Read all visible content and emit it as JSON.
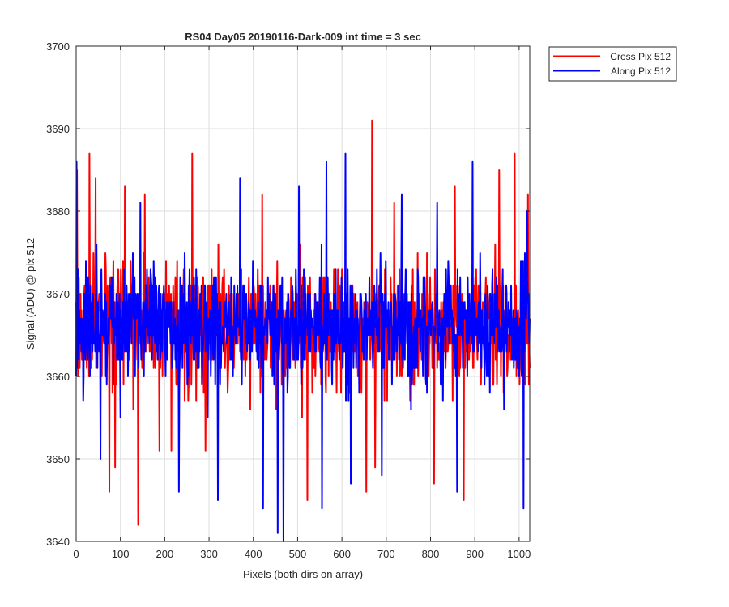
{
  "chart_data": {
    "type": "line",
    "title": "RS04 Day05 20190116-Dark-009 int time = 3 sec",
    "xlabel": "Pixels (both dirs on array)",
    "ylabel": "Signal (ADU) @ pix 512",
    "xlim": [
      0,
      1024
    ],
    "ylim": [
      3640,
      3700
    ],
    "xticks": [
      0,
      100,
      200,
      300,
      400,
      500,
      600,
      700,
      800,
      900,
      1000
    ],
    "yticks": [
      3640,
      3650,
      3660,
      3670,
      3680,
      3690,
      3700
    ],
    "grid": true,
    "legend_position": "outside-top-right",
    "signal_center": 3666,
    "signal_spread": 3.5,
    "series": [
      {
        "name": "Cross Pix 512",
        "color": "#ff0000",
        "seed": 17,
        "spikes": [
          {
            "x": 2,
            "y": 3685
          },
          {
            "x": 30,
            "y": 3687
          },
          {
            "x": 44,
            "y": 3684
          },
          {
            "x": 75,
            "y": 3646
          },
          {
            "x": 88,
            "y": 3649
          },
          {
            "x": 110,
            "y": 3683
          },
          {
            "x": 140,
            "y": 3642
          },
          {
            "x": 155,
            "y": 3682
          },
          {
            "x": 188,
            "y": 3651
          },
          {
            "x": 215,
            "y": 3651
          },
          {
            "x": 262,
            "y": 3687
          },
          {
            "x": 292,
            "y": 3651
          },
          {
            "x": 420,
            "y": 3682
          },
          {
            "x": 522,
            "y": 3645
          },
          {
            "x": 655,
            "y": 3646
          },
          {
            "x": 668,
            "y": 3691
          },
          {
            "x": 675,
            "y": 3649
          },
          {
            "x": 718,
            "y": 3681
          },
          {
            "x": 808,
            "y": 3647
          },
          {
            "x": 855,
            "y": 3683
          },
          {
            "x": 875,
            "y": 3645
          },
          {
            "x": 955,
            "y": 3685
          },
          {
            "x": 990,
            "y": 3687
          },
          {
            "x": 1020,
            "y": 3682
          }
        ]
      },
      {
        "name": "Along Pix 512",
        "color": "#0000ff",
        "seed": 91,
        "spikes": [
          {
            "x": 1,
            "y": 3686
          },
          {
            "x": 55,
            "y": 3650
          },
          {
            "x": 145,
            "y": 3681
          },
          {
            "x": 232,
            "y": 3646
          },
          {
            "x": 320,
            "y": 3645
          },
          {
            "x": 370,
            "y": 3684
          },
          {
            "x": 422,
            "y": 3644
          },
          {
            "x": 455,
            "y": 3641
          },
          {
            "x": 468,
            "y": 3640
          },
          {
            "x": 503,
            "y": 3683
          },
          {
            "x": 555,
            "y": 3644
          },
          {
            "x": 565,
            "y": 3686
          },
          {
            "x": 608,
            "y": 3687
          },
          {
            "x": 620,
            "y": 3647
          },
          {
            "x": 690,
            "y": 3648
          },
          {
            "x": 735,
            "y": 3682
          },
          {
            "x": 815,
            "y": 3681
          },
          {
            "x": 860,
            "y": 3646
          },
          {
            "x": 895,
            "y": 3686
          },
          {
            "x": 1010,
            "y": 3644
          },
          {
            "x": 1018,
            "y": 3680
          }
        ]
      }
    ]
  }
}
